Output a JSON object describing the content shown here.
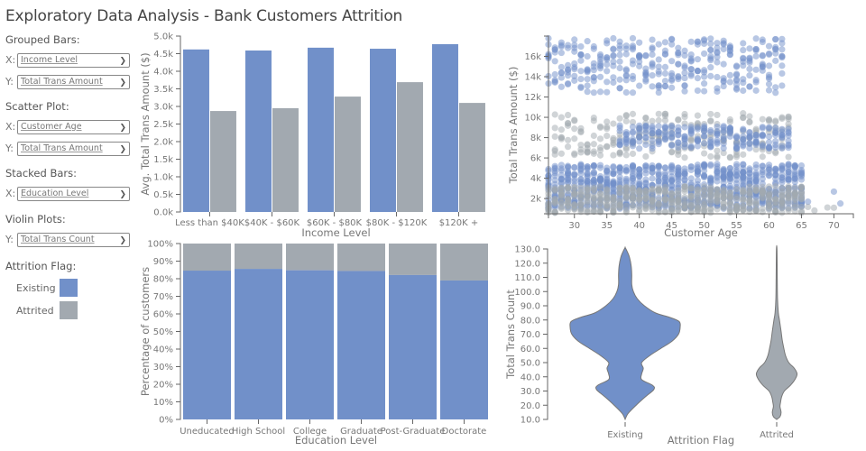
{
  "title": "Exploratory Data Analysis - Bank Customers Attrition",
  "colors": {
    "existing": "#7190c9",
    "attrited": "#a2a9b0",
    "axis": "#666666",
    "text": "#666666"
  },
  "controls": {
    "grouped_bars": {
      "label": "Grouped Bars:",
      "x_letter": "X:",
      "x_value": "Income Level",
      "y_letter": "Y:",
      "y_value": "Total Trans Amount"
    },
    "scatter": {
      "label": "Scatter Plot:",
      "x_letter": "X:",
      "x_value": "Customer Age",
      "y_letter": "Y:",
      "y_value": "Total Trans Amount"
    },
    "stacked": {
      "label": "Stacked Bars:",
      "x_letter": "X:",
      "x_value": "Education Level"
    },
    "violin": {
      "label": "Violin Plots:",
      "y_letter": "Y:",
      "y_value": "Total Trans Count"
    },
    "legend": {
      "label": "Attrition Flag:",
      "items": [
        {
          "label": "Existing"
        },
        {
          "label": "Attrited"
        }
      ]
    },
    "chevron_icon": "chevron-down"
  },
  "chart_data": [
    {
      "id": "grouped",
      "type": "bar",
      "title": "",
      "xlabel": "Income Level",
      "ylabel": "Avg. Total Trans Amount ($)",
      "categories": [
        "Less than $40K",
        "$40K - $60K",
        "$60K - $80K",
        "$80K - $120K",
        "$120K +"
      ],
      "series": [
        {
          "name": "Existing",
          "values": [
            4620,
            4590,
            4670,
            4640,
            4770
          ]
        },
        {
          "name": "Attrited",
          "values": [
            2870,
            2950,
            3280,
            3690,
            3100
          ]
        }
      ],
      "ylim": [
        0,
        5000
      ],
      "yticks": [
        "0.0k",
        "0.5k",
        "1.0k",
        "1.5k",
        "2.0k",
        "2.5k",
        "3.0k",
        "3.5k",
        "4.0k",
        "4.5k",
        "5.0k"
      ],
      "grid": false
    },
    {
      "id": "scatter",
      "type": "scatter",
      "xlabel": "Customer Age",
      "ylabel": "Total Trans Amount ($)",
      "xlim": [
        26,
        73
      ],
      "ylim": [
        500,
        18000
      ],
      "xticks": [
        "30",
        "35",
        "40",
        "45",
        "50",
        "55",
        "60",
        "65",
        "70"
      ],
      "yticks": [
        "2k",
        "4k",
        "6k",
        "8k",
        "10k",
        "12k",
        "14k",
        "16k"
      ],
      "clusters": [
        {
          "series": "Existing",
          "age_range": [
            26,
            62
          ],
          "amount_range": [
            12400,
            17800
          ],
          "count_per_age": 9
        },
        {
          "series": "Attrited",
          "age_range": [
            27,
            37
          ],
          "amount_range": [
            6200,
            10300
          ],
          "count_per_age": 6
        },
        {
          "series": "Attrited",
          "age_range": [
            38,
            63
          ],
          "amount_range": [
            6000,
            10500
          ],
          "count_per_age": 6
        },
        {
          "series": "Existing",
          "age_range": [
            37,
            63
          ],
          "amount_range": [
            6900,
            9200
          ],
          "count_per_age": 8
        },
        {
          "series": "Existing",
          "age_range": [
            26,
            65
          ],
          "amount_range": [
            1000,
            5400
          ],
          "count_per_age": 22
        },
        {
          "series": "Attrited",
          "age_range": [
            26,
            65
          ],
          "amount_range": [
            600,
            3200
          ],
          "count_per_age": 12
        },
        {
          "series": "Existing",
          "age_range": [
            66,
            73
          ],
          "amount_range": [
            1500,
            2800
          ],
          "count_per_age": 1
        },
        {
          "series": "Attrited",
          "age_range": [
            66,
            70
          ],
          "amount_range": [
            600,
            1200
          ],
          "count_per_age": 1
        }
      ],
      "grid": false
    },
    {
      "id": "stacked",
      "type": "bar",
      "stacked": true,
      "xlabel": "Education Level",
      "ylabel": "Percentage of customers",
      "categories": [
        "Uneducated",
        "High School",
        "College",
        "Graduate",
        "Post-Graduate",
        "Doctorate"
      ],
      "series": [
        {
          "name": "Existing",
          "values": [
            84.6,
            85.6,
            84.8,
            84.4,
            82.1,
            79.0
          ]
        },
        {
          "name": "Attrited",
          "values": [
            15.4,
            14.4,
            15.2,
            15.6,
            17.9,
            21.0
          ]
        }
      ],
      "ylim": [
        0,
        100
      ],
      "yticks": [
        "0%",
        "10%",
        "20%",
        "30%",
        "40%",
        "50%",
        "60%",
        "70%",
        "80%",
        "90%",
        "100%"
      ],
      "grid": false
    },
    {
      "id": "violin",
      "type": "violin",
      "xlabel": "Attrition Flag",
      "ylabel": "Total Trans Count",
      "categories": [
        "Existing",
        "Attrited"
      ],
      "ylim": [
        10,
        130
      ],
      "yticks": [
        "10.0",
        "20.0",
        "30.0",
        "40.0",
        "50.0",
        "60.0",
        "70.0",
        "80.0",
        "90.0",
        "100.0",
        "110.0",
        "120.0",
        "130.0"
      ],
      "density": [
        {
          "name": "Existing",
          "profile": [
            [
              10,
              0
            ],
            [
              14,
              0.05
            ],
            [
              20,
              0.2
            ],
            [
              26,
              0.37
            ],
            [
              31,
              0.52
            ],
            [
              34,
              0.5
            ],
            [
              38,
              0.3
            ],
            [
              42,
              0.3
            ],
            [
              46,
              0.33
            ],
            [
              50,
              0.3
            ],
            [
              55,
              0.45
            ],
            [
              60,
              0.65
            ],
            [
              65,
              0.85
            ],
            [
              70,
              0.97
            ],
            [
              75,
              1.0
            ],
            [
              79,
              0.98
            ],
            [
              82,
              0.8
            ],
            [
              85,
              0.55
            ],
            [
              90,
              0.35
            ],
            [
              95,
              0.22
            ],
            [
              100,
              0.15
            ],
            [
              105,
              0.12
            ],
            [
              112,
              0.12
            ],
            [
              118,
              0.11
            ],
            [
              124,
              0.08
            ],
            [
              128,
              0.04
            ],
            [
              131,
              0
            ]
          ]
        },
        {
          "name": "Attrited",
          "profile": [
            [
              10,
              0
            ],
            [
              12,
              0.06
            ],
            [
              15,
              0.08
            ],
            [
              19,
              0.06
            ],
            [
              22,
              0.07
            ],
            [
              26,
              0.09
            ],
            [
              30,
              0.14
            ],
            [
              34,
              0.25
            ],
            [
              38,
              0.33
            ],
            [
              42,
              0.37
            ],
            [
              46,
              0.32
            ],
            [
              50,
              0.22
            ],
            [
              55,
              0.16
            ],
            [
              60,
              0.13
            ],
            [
              66,
              0.1
            ],
            [
              72,
              0.08
            ],
            [
              80,
              0.05
            ],
            [
              85,
              0.03
            ],
            [
              95,
              0.015
            ],
            [
              110,
              0.01
            ],
            [
              130,
              0.005
            ]
          ]
        }
      ],
      "grid": false
    }
  ]
}
